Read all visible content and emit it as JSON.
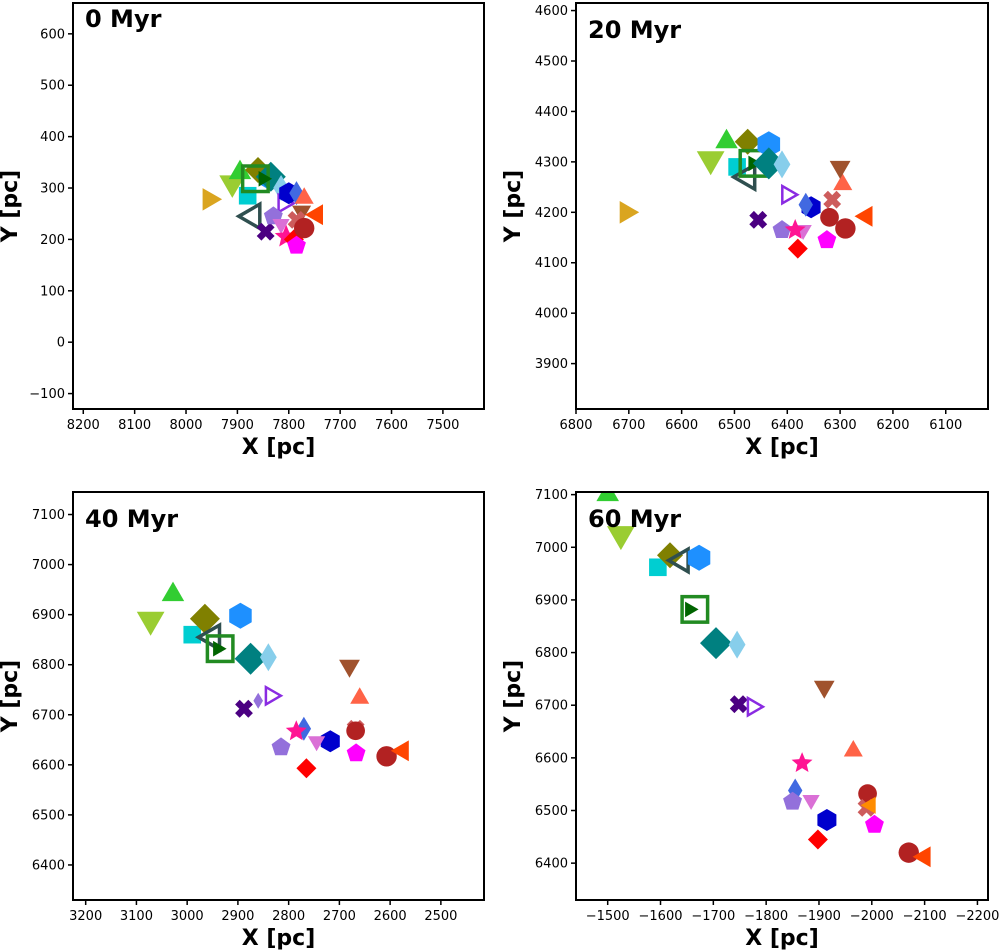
{
  "chart_data": [
    {
      "type": "scatter",
      "title": "0 Myr",
      "xlabel": "X [pc]",
      "ylabel": "Y [pc]",
      "xlim": [
        8220,
        7420
      ],
      "ylim": [
        -130,
        660
      ],
      "xticks": [
        8200,
        8100,
        8000,
        7900,
        7800,
        7700,
        7600,
        7500
      ],
      "yticks": [
        -100,
        0,
        100,
        200,
        300,
        400,
        500,
        600
      ],
      "points": [
        {
          "m": "tri-right",
          "c": "#daa520",
          "x": 7955,
          "y": 278,
          "s": 26
        },
        {
          "m": "tri-down",
          "c": "#9acd32",
          "x": 7910,
          "y": 310,
          "s": 30
        },
        {
          "m": "square",
          "c": "#00ced1",
          "x": 7880,
          "y": 285,
          "s": 22
        },
        {
          "m": "tri-left-open",
          "c": "#2f4f4f",
          "x": 7870,
          "y": 245,
          "s": 28
        },
        {
          "m": "tri-up",
          "c": "#32cd32",
          "x": 7895,
          "y": 330,
          "s": 26
        },
        {
          "m": "diamond",
          "c": "#808000",
          "x": 7860,
          "y": 335,
          "s": 26
        },
        {
          "m": "hexagon",
          "c": "#1e90ff",
          "x": 7835,
          "y": 318,
          "s": 24
        },
        {
          "m": "diamond",
          "c": "#008080",
          "x": 7835,
          "y": 322,
          "s": 30
        },
        {
          "m": "square-open",
          "c": "#228b22",
          "x": 7865,
          "y": 318,
          "s": 30
        },
        {
          "m": "tri-right",
          "c": "#006400",
          "x": 7850,
          "y": 318,
          "s": 18
        },
        {
          "m": "thin-diamond",
          "c": "#87ceeb",
          "x": 7815,
          "y": 300,
          "s": 26
        },
        {
          "m": "tri-right-open",
          "c": "#8a2be2",
          "x": 7810,
          "y": 270,
          "s": 20
        },
        {
          "m": "hexagon",
          "c": "#0000cd",
          "x": 7800,
          "y": 290,
          "s": 22
        },
        {
          "m": "thin-diamond",
          "c": "#4169e1",
          "x": 7785,
          "y": 290,
          "s": 24
        },
        {
          "m": "tri-down",
          "c": "#a0522d",
          "x": 7775,
          "y": 255,
          "s": 22
        },
        {
          "m": "tri-up",
          "c": "#ff6347",
          "x": 7770,
          "y": 280,
          "s": 22
        },
        {
          "m": "tri-left",
          "c": "#ff4500",
          "x": 7745,
          "y": 248,
          "s": 24
        },
        {
          "m": "x",
          "c": "#cd5c5c",
          "x": 7785,
          "y": 238,
          "s": 22
        },
        {
          "m": "x",
          "c": "#4b0082",
          "x": 7845,
          "y": 215,
          "s": 22
        },
        {
          "m": "pentagon",
          "c": "#9370db",
          "x": 7830,
          "y": 245,
          "s": 22
        },
        {
          "m": "tri-down",
          "c": "#da70d6",
          "x": 7815,
          "y": 230,
          "s": 20
        },
        {
          "m": "star",
          "c": "#ff1493",
          "x": 7805,
          "y": 205,
          "s": 24
        },
        {
          "m": "diamond",
          "c": "#ff0000",
          "x": 7790,
          "y": 200,
          "s": 20
        },
        {
          "m": "circle",
          "c": "#b22222",
          "x": 7770,
          "y": 222,
          "s": 24
        },
        {
          "m": "pentagon",
          "c": "#ff00ff",
          "x": 7785,
          "y": 188,
          "s": 22
        }
      ]
    },
    {
      "type": "scatter",
      "title": "20 Myr",
      "xlabel": "X [pc]",
      "ylabel": "Y [pc]",
      "xlim": [
        6800,
        6020
      ],
      "ylim": [
        3810,
        4615
      ],
      "xticks": [
        6800,
        6700,
        6600,
        6500,
        6400,
        6300,
        6200,
        6100
      ],
      "yticks": [
        3900,
        4000,
        4100,
        4200,
        4300,
        4400,
        4500,
        4600
      ],
      "points": [
        {
          "m": "tri-right",
          "c": "#daa520",
          "x": 6705,
          "y": 4200,
          "s": 26
        },
        {
          "m": "tri-down",
          "c": "#9acd32",
          "x": 6545,
          "y": 4305,
          "s": 32
        },
        {
          "m": "tri-up",
          "c": "#32cd32",
          "x": 6515,
          "y": 4340,
          "s": 26
        },
        {
          "m": "square",
          "c": "#00ced1",
          "x": 6495,
          "y": 4290,
          "s": 22
        },
        {
          "m": "tri-left-open",
          "c": "#2f4f4f",
          "x": 6475,
          "y": 4270,
          "s": 28
        },
        {
          "m": "diamond",
          "c": "#808000",
          "x": 6475,
          "y": 4340,
          "s": 26
        },
        {
          "m": "square-open",
          "c": "#228b22",
          "x": 6465,
          "y": 4297,
          "s": 30
        },
        {
          "m": "tri-right",
          "c": "#006400",
          "x": 6465,
          "y": 4297,
          "s": 18
        },
        {
          "m": "hexagon",
          "c": "#1e90ff",
          "x": 6435,
          "y": 4335,
          "s": 26
        },
        {
          "m": "diamond",
          "c": "#008080",
          "x": 6435,
          "y": 4297,
          "s": 32
        },
        {
          "m": "thin-diamond",
          "c": "#87ceeb",
          "x": 6410,
          "y": 4295,
          "s": 28
        },
        {
          "m": "tri-right-open",
          "c": "#8a2be2",
          "x": 6400,
          "y": 4235,
          "s": 20
        },
        {
          "m": "tri-up",
          "c": "#ff6347",
          "x": 6295,
          "y": 4255,
          "s": 22
        },
        {
          "m": "tri-down",
          "c": "#a0522d",
          "x": 6300,
          "y": 4290,
          "s": 24
        },
        {
          "m": "x",
          "c": "#cd5c5c",
          "x": 6315,
          "y": 4225,
          "s": 22
        },
        {
          "m": "tri-left",
          "c": "#ff4500",
          "x": 6250,
          "y": 4192,
          "s": 24
        },
        {
          "m": "hexagon",
          "c": "#0000cd",
          "x": 6355,
          "y": 4210,
          "s": 22
        },
        {
          "m": "thin-diamond",
          "c": "#4169e1",
          "x": 6365,
          "y": 4215,
          "s": 24
        },
        {
          "m": "x",
          "c": "#4b0082",
          "x": 6455,
          "y": 4185,
          "s": 22
        },
        {
          "m": "pentagon",
          "c": "#9370db",
          "x": 6410,
          "y": 4165,
          "s": 22
        },
        {
          "m": "tri-down",
          "c": "#da70d6",
          "x": 6370,
          "y": 4165,
          "s": 20
        },
        {
          "m": "star",
          "c": "#ff1493",
          "x": 6385,
          "y": 4165,
          "s": 22
        },
        {
          "m": "circle",
          "c": "#b22222",
          "x": 6320,
          "y": 4190,
          "s": 22
        },
        {
          "m": "circle",
          "c": "#b22222",
          "x": 6290,
          "y": 4168,
          "s": 24
        },
        {
          "m": "pentagon",
          "c": "#ff00ff",
          "x": 6325,
          "y": 4145,
          "s": 22
        },
        {
          "m": "diamond",
          "c": "#ff0000",
          "x": 6380,
          "y": 4128,
          "s": 20
        }
      ]
    },
    {
      "type": "scatter",
      "title": "40 Myr",
      "xlabel": "X [pc]",
      "ylabel": "Y [pc]",
      "xlim": [
        3225,
        2415
      ],
      "ylim": [
        6330,
        7145
      ],
      "xticks": [
        3200,
        3100,
        3000,
        2900,
        2800,
        2700,
        2600,
        2500
      ],
      "yticks": [
        6400,
        6500,
        6600,
        6700,
        6800,
        6900,
        7000,
        7100
      ],
      "points": [
        {
          "m": "tri-down",
          "c": "#9acd32",
          "x": 3072,
          "y": 6890,
          "s": 32
        },
        {
          "m": "tri-up",
          "c": "#32cd32",
          "x": 3028,
          "y": 6940,
          "s": 26
        },
        {
          "m": "square",
          "c": "#00ced1",
          "x": 2990,
          "y": 6860,
          "s": 22
        },
        {
          "m": "diamond",
          "c": "#808000",
          "x": 2965,
          "y": 6892,
          "s": 30
        },
        {
          "m": "tri-left-open",
          "c": "#2f4f4f",
          "x": 2950,
          "y": 6855,
          "s": 28
        },
        {
          "m": "square-open",
          "c": "#228b22",
          "x": 2935,
          "y": 6832,
          "s": 30
        },
        {
          "m": "tri-right",
          "c": "#006400",
          "x": 2940,
          "y": 6832,
          "s": 18
        },
        {
          "m": "hexagon",
          "c": "#1e90ff",
          "x": 2895,
          "y": 6898,
          "s": 26
        },
        {
          "m": "diamond",
          "c": "#008080",
          "x": 2875,
          "y": 6812,
          "s": 32
        },
        {
          "m": "thin-diamond",
          "c": "#87ceeb",
          "x": 2840,
          "y": 6815,
          "s": 28
        },
        {
          "m": "tri-right-open",
          "c": "#8a2be2",
          "x": 2835,
          "y": 6738,
          "s": 20
        },
        {
          "m": "thin-diamond",
          "c": "#9370db",
          "x": 2860,
          "y": 6728,
          "s": 16
        },
        {
          "m": "x",
          "c": "#4b0082",
          "x": 2888,
          "y": 6712,
          "s": 22
        },
        {
          "m": "tri-down",
          "c": "#a0522d",
          "x": 2680,
          "y": 6798,
          "s": 24
        },
        {
          "m": "tri-up",
          "c": "#ff6347",
          "x": 2660,
          "y": 6733,
          "s": 22
        },
        {
          "m": "thin-diamond",
          "c": "#4169e1",
          "x": 2770,
          "y": 6672,
          "s": 24
        },
        {
          "m": "star",
          "c": "#ff1493",
          "x": 2785,
          "y": 6667,
          "s": 22
        },
        {
          "m": "hexagon",
          "c": "#0000cd",
          "x": 2718,
          "y": 6647,
          "s": 22
        },
        {
          "m": "tri-down",
          "c": "#da70d6",
          "x": 2745,
          "y": 6647,
          "s": 20
        },
        {
          "m": "pentagon",
          "c": "#9370db",
          "x": 2815,
          "y": 6635,
          "s": 22
        },
        {
          "m": "x",
          "c": "#cd5c5c",
          "x": 2668,
          "y": 6672,
          "s": 22
        },
        {
          "m": "circle",
          "c": "#b22222",
          "x": 2668,
          "y": 6668,
          "s": 22
        },
        {
          "m": "pentagon",
          "c": "#ff00ff",
          "x": 2667,
          "y": 6623,
          "s": 22
        },
        {
          "m": "diamond",
          "c": "#ff0000",
          "x": 2765,
          "y": 6593,
          "s": 20
        },
        {
          "m": "circle",
          "c": "#b22222",
          "x": 2607,
          "y": 6617,
          "s": 24
        },
        {
          "m": "tri-left",
          "c": "#ff4500",
          "x": 2575,
          "y": 6628,
          "s": 24
        }
      ]
    },
    {
      "type": "scatter",
      "title": "60 Myr",
      "xlabel": "X [pc]",
      "ylabel": "Y [pc]",
      "xlim": [
        -1440,
        -2220
      ],
      "ylim": [
        6330,
        7105
      ],
      "xticks": [
        -1500,
        -1600,
        -1700,
        -1800,
        -1900,
        -2000,
        -2100,
        -2200
      ],
      "yticks": [
        6400,
        6500,
        6600,
        6700,
        6800,
        6900,
        7000,
        7100
      ],
      "points": [
        {
          "m": "tri-up",
          "c": "#32cd32",
          "x": -1500,
          "y": 7100,
          "s": 26
        },
        {
          "m": "tri-down",
          "c": "#9acd32",
          "x": -1525,
          "y": 7025,
          "s": 32
        },
        {
          "m": "square",
          "c": "#00ced1",
          "x": -1595,
          "y": 6962,
          "s": 22
        },
        {
          "m": "diamond",
          "c": "#808000",
          "x": -1618,
          "y": 6985,
          "s": 26
        },
        {
          "m": "tri-left-open",
          "c": "#2f4f4f",
          "x": -1640,
          "y": 6975,
          "s": 26
        },
        {
          "m": "hexagon",
          "c": "#1e90ff",
          "x": -1673,
          "y": 6980,
          "s": 26
        },
        {
          "m": "square-open",
          "c": "#228b22",
          "x": -1665,
          "y": 6882,
          "s": 30
        },
        {
          "m": "tri-right",
          "c": "#006400",
          "x": -1655,
          "y": 6882,
          "s": 18
        },
        {
          "m": "diamond",
          "c": "#008080",
          "x": -1705,
          "y": 6818,
          "s": 32
        },
        {
          "m": "thin-diamond",
          "c": "#87ceeb",
          "x": -1745,
          "y": 6815,
          "s": 28
        },
        {
          "m": "x",
          "c": "#4b0082",
          "x": -1748,
          "y": 6702,
          "s": 22
        },
        {
          "m": "tri-right-open",
          "c": "#8a2be2",
          "x": -1775,
          "y": 6697,
          "s": 20
        },
        {
          "m": "tri-down",
          "c": "#a0522d",
          "x": -1910,
          "y": 6735,
          "s": 24
        },
        {
          "m": "tri-up",
          "c": "#ff6347",
          "x": -1965,
          "y": 6613,
          "s": 22
        },
        {
          "m": "star",
          "c": "#ff1493",
          "x": -1868,
          "y": 6590,
          "s": 22
        },
        {
          "m": "thin-diamond",
          "c": "#4169e1",
          "x": -1855,
          "y": 6538,
          "s": 24
        },
        {
          "m": "pentagon",
          "c": "#9370db",
          "x": -1850,
          "y": 6517,
          "s": 22
        },
        {
          "m": "tri-down",
          "c": "#da70d6",
          "x": -1885,
          "y": 6520,
          "s": 20
        },
        {
          "m": "circle",
          "c": "#b22222",
          "x": -1992,
          "y": 6532,
          "s": 22
        },
        {
          "m": "x",
          "c": "#cd5c5c",
          "x": -1990,
          "y": 6505,
          "s": 22
        },
        {
          "m": "tri-left",
          "c": "#ff8c00",
          "x": -1998,
          "y": 6510,
          "s": 20
        },
        {
          "m": "hexagon",
          "c": "#0000cd",
          "x": -1915,
          "y": 6482,
          "s": 22
        },
        {
          "m": "pentagon",
          "c": "#ff00ff",
          "x": -2005,
          "y": 6473,
          "s": 22
        },
        {
          "m": "diamond",
          "c": "#ff0000",
          "x": -1898,
          "y": 6445,
          "s": 20
        },
        {
          "m": "circle",
          "c": "#b22222",
          "x": -2070,
          "y": 6420,
          "s": 24
        },
        {
          "m": "tri-left",
          "c": "#ff4500",
          "x": -2100,
          "y": 6412,
          "s": 24
        }
      ]
    }
  ]
}
